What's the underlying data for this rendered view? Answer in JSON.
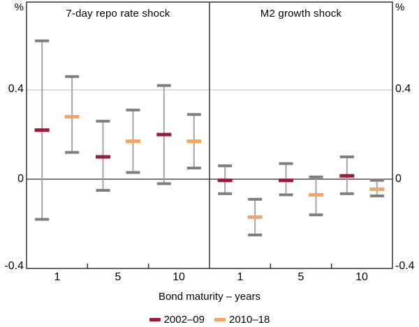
{
  "figure": {
    "y_axis": {
      "unit": "%",
      "tick_labels": [
        "0.4",
        "0",
        "-0.4"
      ]
    }
  },
  "chart_data": {
    "type": "errorbar",
    "layout": "two-panel",
    "xlabel": "Bond maturity – years",
    "y_unit": "%",
    "y_ticks": [
      0.4,
      0,
      -0.4
    ],
    "ylim": [
      -0.4,
      0.79
    ],
    "grid": "horizontal-at-0.4-and-0",
    "legend_position": "bottom-center",
    "colors": {
      "series_2002_09": "#9B1B3B",
      "series_2010_18": "#F9A361",
      "whisker_cap": "#7F7F7F",
      "whisker_stem": "#A6A6A6",
      "zero_line": "#4D4D4D",
      "gridline": "#C2C2C2",
      "frame": "#333333"
    },
    "legend": [
      {
        "label": "2002–09",
        "color": "#9B1B3B"
      },
      {
        "label": "2010–18",
        "color": "#F9A361"
      }
    ],
    "panels": [
      {
        "title": "7-day repo rate shock",
        "categories": [
          "1",
          "5",
          "10"
        ],
        "series": [
          {
            "name": "2002–09",
            "points": [
              {
                "maturity": 1,
                "mid": 0.22,
                "lo": -0.18,
                "hi": 0.62
              },
              {
                "maturity": 5,
                "mid": 0.1,
                "lo": -0.05,
                "hi": 0.26
              },
              {
                "maturity": 10,
                "mid": 0.2,
                "lo": -0.02,
                "hi": 0.42
              }
            ]
          },
          {
            "name": "2010–18",
            "points": [
              {
                "maturity": 1,
                "mid": 0.28,
                "lo": 0.12,
                "hi": 0.46
              },
              {
                "maturity": 5,
                "mid": 0.17,
                "lo": 0.03,
                "hi": 0.31
              },
              {
                "maturity": 10,
                "mid": 0.17,
                "lo": 0.05,
                "hi": 0.29
              }
            ]
          }
        ]
      },
      {
        "title": "M2 growth shock",
        "categories": [
          "1",
          "5",
          "10"
        ],
        "series": [
          {
            "name": "2002–09",
            "points": [
              {
                "maturity": 1,
                "mid": -0.005,
                "lo": -0.065,
                "hi": 0.06
              },
              {
                "maturity": 5,
                "mid": -0.005,
                "lo": -0.07,
                "hi": 0.07
              },
              {
                "maturity": 10,
                "mid": 0.015,
                "lo": -0.065,
                "hi": 0.1
              }
            ]
          },
          {
            "name": "2010–18",
            "points": [
              {
                "maturity": 1,
                "mid": -0.17,
                "lo": -0.25,
                "hi": -0.09
              },
              {
                "maturity": 5,
                "mid": -0.07,
                "lo": -0.16,
                "hi": 0.01
              },
              {
                "maturity": 10,
                "mid": -0.045,
                "lo": -0.075,
                "hi": -0.005
              }
            ]
          }
        ]
      }
    ]
  }
}
